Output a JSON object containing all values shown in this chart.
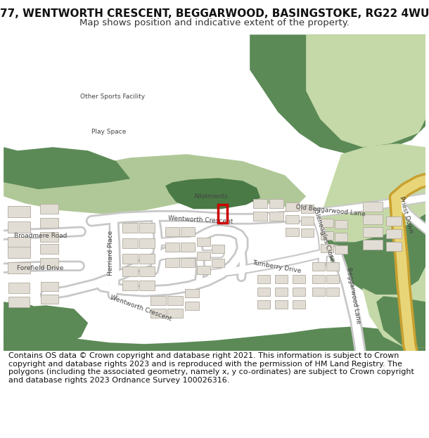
{
  "title_line1": "77, WENTWORTH CRESCENT, BEGGARWOOD, BASINGSTOKE, RG22 4WU",
  "title_line2": "Map shows position and indicative extent of the property.",
  "footer": "Contains OS data © Crown copyright and database right 2021. This information is subject to Crown copyright and database rights 2023 and is reproduced with the permission of HM Land Registry. The polygons (including the associated geometry, namely x, y co-ordinates) are subject to Crown copyright and database rights 2023 Ordnance Survey 100026316.",
  "bg_color": "#ffffff",
  "map_bg": "#f0ede5",
  "green_dark": "#5c8a57",
  "green_light": "#c5d9a8",
  "green_mid": "#b0c898",
  "allot_green": "#4a7a46",
  "road_color": "#ffffff",
  "road_outline": "#c8c8c8",
  "building_color": "#e2ddd4",
  "building_outline": "#b0aba0",
  "highlight_color": "#cc0000",
  "road_yellow": "#e8d580",
  "road_yellow_out": "#c8a830",
  "text_color": "#444444",
  "title_fs": 11,
  "subtitle_fs": 9.5,
  "footer_fs": 8.0,
  "label_fs": 6.5
}
